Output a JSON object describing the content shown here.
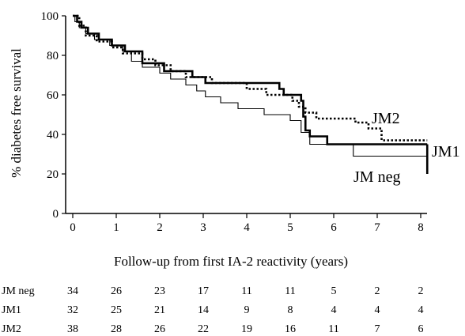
{
  "chart_data": {
    "type": "line",
    "step": true,
    "title": "",
    "xlabel": "Follow-up from first IA-2 reactivity (years)",
    "ylabel": "% diabetes free survival",
    "xlim": [
      0,
      8.2
    ],
    "ylim": [
      0,
      100
    ],
    "x_ticks": [
      "0",
      "1",
      "2",
      "3",
      "4",
      "5",
      "6",
      "7",
      "8"
    ],
    "y_ticks": [
      "0",
      "20",
      "40",
      "60",
      "80",
      "100"
    ],
    "grid": false,
    "series": [
      {
        "name": "JM neg",
        "style": "thin",
        "x": [
          0,
          0.05,
          0.15,
          0.3,
          0.5,
          0.85,
          1.15,
          1.35,
          1.6,
          2.0,
          2.25,
          2.6,
          2.85,
          3.05,
          3.4,
          3.8,
          4.4,
          5.0,
          5.25,
          5.45,
          6.45,
          8.15
        ],
        "y": [
          100,
          97,
          94,
          91,
          88,
          85,
          82,
          77,
          74,
          71,
          68,
          65,
          62,
          59,
          56,
          53,
          50,
          47,
          41,
          35,
          29,
          26
        ]
      },
      {
        "name": "JM1",
        "style": "thick",
        "x": [
          0,
          0.1,
          0.2,
          0.35,
          0.6,
          0.9,
          1.2,
          1.6,
          2.1,
          2.75,
          3.05,
          4.1,
          4.75,
          4.85,
          5.25,
          5.3,
          5.35,
          5.45,
          5.85,
          8.15
        ],
        "y": [
          100,
          97,
          94,
          91,
          88,
          85,
          82,
          76,
          72,
          69,
          66,
          66,
          63,
          60,
          57,
          49,
          42,
          39,
          35,
          35
        ]
      },
      {
        "name": "JM2",
        "style": "dotted",
        "x": [
          0,
          0.15,
          0.3,
          0.55,
          0.9,
          1.15,
          1.6,
          1.9,
          2.25,
          2.6,
          3.2,
          4.0,
          4.45,
          5.05,
          5.2,
          5.35,
          5.6,
          6.5,
          6.8,
          7.1,
          8.15
        ],
        "y": [
          100,
          95,
          90,
          87,
          84,
          81,
          78,
          75,
          72,
          69,
          66,
          63,
          60,
          57,
          54,
          51,
          48,
          46,
          43,
          37,
          37
        ]
      }
    ],
    "series_labels": [
      "JM2",
      "JM1",
      "JM neg"
    ],
    "risk_table": {
      "rows": [
        {
          "label": "JM neg",
          "values": [
            "34",
            "26",
            "23",
            "17",
            "11",
            "11",
            "5",
            "2",
            "2"
          ]
        },
        {
          "label": "JM1",
          "values": [
            "32",
            "25",
            "21",
            "14",
            "9",
            "8",
            "4",
            "4",
            "4"
          ]
        },
        {
          "label": "JM2",
          "values": [
            "38",
            "28",
            "26",
            "22",
            "19",
            "16",
            "11",
            "7",
            "6"
          ]
        }
      ]
    }
  }
}
